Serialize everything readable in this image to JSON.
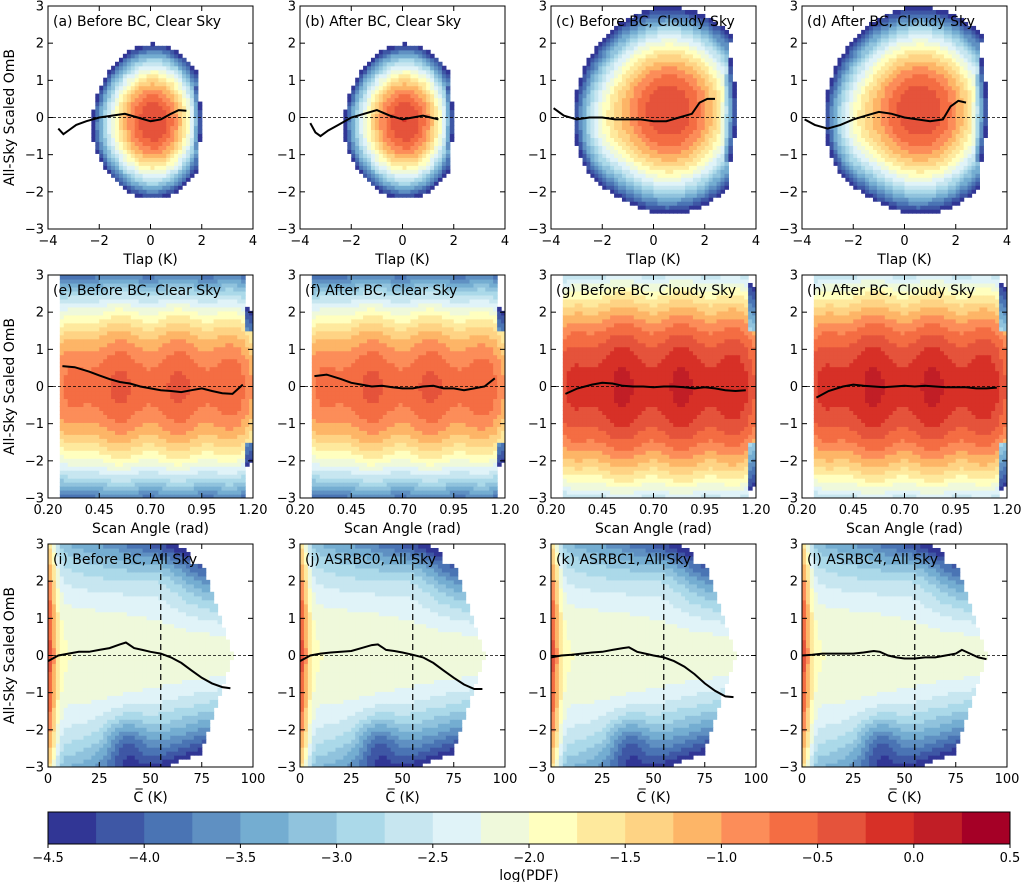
{
  "colorbar": {
    "label": "log(PDF)",
    "levels": [
      -4.5,
      -4.25,
      -4.0,
      -3.75,
      -3.5,
      -3.25,
      -3.0,
      -2.75,
      -2.5,
      -2.25,
      -2.0,
      -1.75,
      -1.5,
      -1.25,
      -1.0,
      -0.75,
      -0.5,
      -0.25,
      0.0,
      0.25,
      0.5
    ],
    "ticks": [
      -4.5,
      -4.0,
      -3.5,
      -3.0,
      -2.5,
      -2.0,
      -1.5,
      -1.0,
      -0.5,
      0.0,
      0.5
    ],
    "tick_labels": [
      "−4.5",
      "−4.0",
      "−3.5",
      "−3.0",
      "−2.5",
      "−2.0",
      "−1.5",
      "−1.0",
      "−0.5",
      "0.0",
      "0.5"
    ],
    "colors": [
      "#313695",
      "#3e57a5",
      "#4a74b4",
      "#5f90c2",
      "#74add1",
      "#90c3dd",
      "#abd9e9",
      "#c7e6f0",
      "#e0f3f8",
      "#eff9db",
      "#ffffbf",
      "#fee99d",
      "#fed384",
      "#fdb567",
      "#fc8d59",
      "#f46d43",
      "#e5533b",
      "#d73027",
      "#c11e26",
      "#a50026"
    ]
  },
  "ylabel": "All-Sky Scaled OmB",
  "chart_data": [
    {
      "type": "contour",
      "title": "(a) Before BC, Clear Sky",
      "xlabel": "Tlap (K)",
      "xlim": [
        -4,
        4
      ],
      "ylim": [
        -3,
        3
      ],
      "x_ticks": [
        -4,
        -2,
        0,
        2,
        4
      ],
      "x_tick_labels": [
        "−4",
        "−2",
        "0",
        "2",
        "4"
      ],
      "y_ticks": [
        -3,
        -2,
        -1,
        0,
        1,
        2,
        3
      ],
      "y_tick_labels": [
        "−3",
        "−2",
        "−1",
        "0",
        "1",
        "2",
        "3"
      ],
      "mean_line": {
        "x": [
          -3.6,
          -3.4,
          -3.2,
          -2.9,
          -2.5,
          -2.0,
          -1.5,
          -1.0,
          -0.5,
          0.0,
          0.4,
          0.8,
          1.1,
          1.4
        ],
        "y": [
          -0.3,
          -0.45,
          -0.35,
          -0.2,
          -0.1,
          0.0,
          0.05,
          0.1,
          0.0,
          -0.1,
          -0.05,
          0.1,
          0.2,
          0.18
        ]
      }
    },
    {
      "type": "contour",
      "title": "(b) After BC, Clear Sky",
      "xlabel": "Tlap (K)",
      "xlim": [
        -4,
        4
      ],
      "ylim": [
        -3,
        3
      ],
      "x_ticks": [
        -4,
        -2,
        0,
        2,
        4
      ],
      "x_tick_labels": [
        "−4",
        "−2",
        "0",
        "2",
        "4"
      ],
      "y_ticks": [
        -3,
        -2,
        -1,
        0,
        1,
        2,
        3
      ],
      "y_tick_labels": [
        "−3",
        "−2",
        "−1",
        "0",
        "1",
        "2",
        "3"
      ],
      "mean_line": {
        "x": [
          -3.6,
          -3.4,
          -3.2,
          -2.9,
          -2.5,
          -2.0,
          -1.5,
          -1.0,
          -0.5,
          0.0,
          0.4,
          0.8,
          1.1,
          1.4
        ],
        "y": [
          -0.15,
          -0.4,
          -0.5,
          -0.35,
          -0.2,
          0.0,
          0.1,
          0.2,
          0.05,
          -0.05,
          0.0,
          0.05,
          0.0,
          -0.05
        ]
      }
    },
    {
      "type": "contour",
      "title": "(c) Before BC, Cloudy Sky",
      "xlabel": "Tlap (K)",
      "xlim": [
        -4,
        4
      ],
      "ylim": [
        -3,
        3
      ],
      "x_ticks": [
        -4,
        -2,
        0,
        2,
        4
      ],
      "x_tick_labels": [
        "−4",
        "−2",
        "0",
        "2",
        "4"
      ],
      "y_ticks": [
        -3,
        -2,
        -1,
        0,
        1,
        2,
        3
      ],
      "y_tick_labels": [
        "−3",
        "−2",
        "−1",
        "0",
        "1",
        "2",
        "3"
      ],
      "mean_line": {
        "x": [
          -3.9,
          -3.5,
          -3.0,
          -2.5,
          -2.0,
          -1.5,
          -1.0,
          -0.5,
          0.0,
          0.5,
          1.0,
          1.5,
          1.8,
          2.1,
          2.4
        ],
        "y": [
          0.25,
          0.05,
          -0.05,
          0.0,
          0.0,
          -0.05,
          -0.05,
          -0.05,
          -0.1,
          -0.1,
          0.0,
          0.1,
          0.4,
          0.5,
          0.5
        ]
      }
    },
    {
      "type": "contour",
      "title": "(d) After BC, Cloudy Sky",
      "xlabel": "Tlap (K)",
      "xlim": [
        -4,
        4
      ],
      "ylim": [
        -3,
        3
      ],
      "x_ticks": [
        -4,
        -2,
        0,
        2,
        4
      ],
      "x_tick_labels": [
        "−4",
        "−2",
        "0",
        "2",
        "4"
      ],
      "y_ticks": [
        -3,
        -2,
        -1,
        0,
        1,
        2,
        3
      ],
      "y_tick_labels": [
        "−3",
        "−2",
        "−1",
        "0",
        "1",
        "2",
        "3"
      ],
      "mean_line": {
        "x": [
          -3.9,
          -3.5,
          -3.0,
          -2.5,
          -2.0,
          -1.5,
          -1.0,
          -0.5,
          0.0,
          0.5,
          1.0,
          1.5,
          1.8,
          2.1,
          2.4
        ],
        "y": [
          -0.05,
          -0.2,
          -0.3,
          -0.2,
          -0.05,
          0.05,
          0.15,
          0.1,
          0.0,
          -0.05,
          -0.1,
          -0.05,
          0.3,
          0.45,
          0.4
        ]
      }
    },
    {
      "type": "contour",
      "title": "(e) Before BC, Clear Sky",
      "xlabel": "Scan Angle (rad)",
      "xlim": [
        0.2,
        1.2
      ],
      "ylim": [
        -3,
        3
      ],
      "x_ticks": [
        0.2,
        0.45,
        0.7,
        0.95,
        1.2
      ],
      "x_tick_labels": [
        "0.20",
        "0.45",
        "0.70",
        "0.95",
        "1.20"
      ],
      "y_ticks": [
        -3,
        -2,
        -1,
        0,
        1,
        2,
        3
      ],
      "y_tick_labels": [
        "−3",
        "−2",
        "−1",
        "0",
        "1",
        "2",
        "3"
      ],
      "mean_line": {
        "x": [
          0.27,
          0.33,
          0.4,
          0.45,
          0.5,
          0.55,
          0.6,
          0.65,
          0.7,
          0.75,
          0.8,
          0.85,
          0.9,
          0.95,
          1.0,
          1.05,
          1.1,
          1.15
        ],
        "y": [
          0.55,
          0.52,
          0.4,
          0.3,
          0.2,
          0.12,
          0.08,
          0.0,
          -0.05,
          -0.1,
          -0.12,
          -0.15,
          -0.1,
          -0.05,
          -0.12,
          -0.18,
          -0.2,
          0.05
        ]
      }
    },
    {
      "type": "contour",
      "title": "(f) After BC, Clear Sky",
      "xlabel": "Scan Angle (rad)",
      "xlim": [
        0.2,
        1.2
      ],
      "ylim": [
        -3,
        3
      ],
      "x_ticks": [
        0.2,
        0.45,
        0.7,
        0.95,
        1.2
      ],
      "x_tick_labels": [
        "0.20",
        "0.45",
        "0.70",
        "0.95",
        "1.20"
      ],
      "y_ticks": [
        -3,
        -2,
        -1,
        0,
        1,
        2,
        3
      ],
      "y_tick_labels": [
        "−3",
        "−2",
        "−1",
        "0",
        "1",
        "2",
        "3"
      ],
      "mean_line": {
        "x": [
          0.27,
          0.33,
          0.4,
          0.45,
          0.5,
          0.55,
          0.6,
          0.65,
          0.7,
          0.75,
          0.8,
          0.85,
          0.9,
          0.95,
          1.0,
          1.05,
          1.1,
          1.15
        ],
        "y": [
          0.28,
          0.32,
          0.2,
          0.1,
          0.05,
          0.0,
          0.02,
          -0.02,
          -0.05,
          -0.05,
          0.0,
          0.02,
          -0.05,
          -0.05,
          -0.1,
          -0.05,
          0.0,
          0.22
        ]
      }
    },
    {
      "type": "contour",
      "title": "(g) Before BC, Cloudy Sky",
      "xlabel": "Scan Angle (rad)",
      "xlim": [
        0.2,
        1.2
      ],
      "ylim": [
        -3,
        3
      ],
      "x_ticks": [
        0.2,
        0.45,
        0.7,
        0.95,
        1.2
      ],
      "x_tick_labels": [
        "0.20",
        "0.45",
        "0.70",
        "0.95",
        "1.20"
      ],
      "y_ticks": [
        -3,
        -2,
        -1,
        0,
        1,
        2,
        3
      ],
      "y_tick_labels": [
        "−3",
        "−2",
        "−1",
        "0",
        "1",
        "2",
        "3"
      ],
      "mean_line": {
        "x": [
          0.27,
          0.33,
          0.4,
          0.45,
          0.5,
          0.55,
          0.6,
          0.65,
          0.7,
          0.75,
          0.8,
          0.85,
          0.9,
          0.95,
          1.0,
          1.05,
          1.1,
          1.15
        ],
        "y": [
          -0.2,
          -0.05,
          0.05,
          0.1,
          0.08,
          0.02,
          0.0,
          0.0,
          -0.02,
          0.0,
          0.0,
          -0.02,
          -0.05,
          -0.02,
          -0.05,
          -0.1,
          -0.12,
          -0.1
        ]
      }
    },
    {
      "type": "contour",
      "title": "(h) After BC, Cloudy Sky",
      "xlabel": "Scan Angle (rad)",
      "xlim": [
        0.2,
        1.2
      ],
      "ylim": [
        -3,
        3
      ],
      "x_ticks": [
        0.2,
        0.45,
        0.7,
        0.95,
        1.2
      ],
      "x_tick_labels": [
        "0.20",
        "0.45",
        "0.70",
        "0.95",
        "1.20"
      ],
      "y_ticks": [
        -3,
        -2,
        -1,
        0,
        1,
        2,
        3
      ],
      "y_tick_labels": [
        "−3",
        "−2",
        "−1",
        "0",
        "1",
        "2",
        "3"
      ],
      "mean_line": {
        "x": [
          0.27,
          0.33,
          0.4,
          0.45,
          0.5,
          0.55,
          0.6,
          0.65,
          0.7,
          0.75,
          0.8,
          0.85,
          0.9,
          0.95,
          1.0,
          1.05,
          1.1,
          1.15
        ],
        "y": [
          -0.3,
          -0.12,
          0.0,
          0.05,
          0.02,
          0.0,
          -0.02,
          0.0,
          0.02,
          0.0,
          0.02,
          0.0,
          -0.02,
          -0.02,
          -0.02,
          -0.05,
          -0.05,
          -0.03
        ]
      }
    },
    {
      "type": "contour",
      "title": "(i) Before BC, All Sky",
      "xlabel": "C̅ (K)",
      "xlim": [
        0,
        100
      ],
      "ylim": [
        -3,
        3
      ],
      "x_ticks": [
        0,
        25,
        50,
        75,
        100
      ],
      "x_tick_labels": [
        "0",
        "25",
        "50",
        "75",
        "100"
      ],
      "y_ticks": [
        -3,
        -2,
        -1,
        0,
        1,
        2,
        3
      ],
      "y_tick_labels": [
        "−3",
        "−2",
        "−1",
        "0",
        "1",
        "2",
        "3"
      ],
      "vline": 55,
      "mean_line": {
        "x": [
          0,
          5,
          10,
          15,
          20,
          25,
          30,
          35,
          38,
          42,
          46,
          50,
          55,
          60,
          65,
          70,
          75,
          80,
          85,
          89
        ],
        "y": [
          -0.15,
          0.0,
          0.05,
          0.1,
          0.1,
          0.15,
          0.2,
          0.3,
          0.35,
          0.2,
          0.15,
          0.1,
          0.05,
          -0.05,
          -0.2,
          -0.4,
          -0.6,
          -0.75,
          -0.85,
          -0.88
        ]
      }
    },
    {
      "type": "contour",
      "title": "(j) ASRBC0, All Sky",
      "xlabel": "C̅ (K)",
      "xlim": [
        0,
        100
      ],
      "ylim": [
        -3,
        3
      ],
      "x_ticks": [
        0,
        25,
        50,
        75,
        100
      ],
      "x_tick_labels": [
        "0",
        "25",
        "50",
        "75",
        "100"
      ],
      "y_ticks": [
        -3,
        -2,
        -1,
        0,
        1,
        2,
        3
      ],
      "y_tick_labels": [
        "−3",
        "−2",
        "−1",
        "0",
        "1",
        "2",
        "3"
      ],
      "vline": 55,
      "mean_line": {
        "x": [
          0,
          5,
          10,
          15,
          20,
          25,
          30,
          35,
          38,
          42,
          46,
          50,
          55,
          60,
          65,
          70,
          75,
          80,
          85,
          89
        ],
        "y": [
          -0.15,
          0.0,
          0.05,
          0.08,
          0.1,
          0.12,
          0.2,
          0.28,
          0.3,
          0.15,
          0.12,
          0.08,
          0.02,
          -0.05,
          -0.2,
          -0.4,
          -0.6,
          -0.78,
          -0.9,
          -0.9
        ]
      }
    },
    {
      "type": "contour",
      "title": "(k) ASRBC1, All Sky",
      "xlabel": "C̅ (K)",
      "xlim": [
        0,
        100
      ],
      "ylim": [
        -3,
        3
      ],
      "x_ticks": [
        0,
        25,
        50,
        75,
        100
      ],
      "x_tick_labels": [
        "0",
        "25",
        "50",
        "75",
        "100"
      ],
      "y_ticks": [
        -3,
        -2,
        -1,
        0,
        1,
        2,
        3
      ],
      "y_tick_labels": [
        "−3",
        "−2",
        "−1",
        "0",
        "1",
        "2",
        "3"
      ],
      "vline": 55,
      "mean_line": {
        "x": [
          0,
          5,
          10,
          15,
          20,
          25,
          30,
          35,
          38,
          42,
          46,
          50,
          55,
          60,
          65,
          70,
          75,
          80,
          85,
          89
        ],
        "y": [
          -0.05,
          0.0,
          0.02,
          0.05,
          0.08,
          0.1,
          0.15,
          0.2,
          0.22,
          0.1,
          0.05,
          0.0,
          -0.05,
          -0.15,
          -0.3,
          -0.5,
          -0.75,
          -0.95,
          -1.1,
          -1.12
        ]
      }
    },
    {
      "type": "contour",
      "title": "(l) ASRBC4, All Sky",
      "xlabel": "C̅ (K)",
      "xlim": [
        0,
        100
      ],
      "ylim": [
        -3,
        3
      ],
      "x_ticks": [
        0,
        25,
        50,
        75,
        100
      ],
      "x_tick_labels": [
        "0",
        "25",
        "50",
        "75",
        "100"
      ],
      "y_ticks": [
        -3,
        -2,
        -1,
        0,
        1,
        2,
        3
      ],
      "y_tick_labels": [
        "−3",
        "−2",
        "−1",
        "0",
        "1",
        "2",
        "3"
      ],
      "vline": 55,
      "mean_line": {
        "x": [
          0,
          5,
          10,
          15,
          20,
          25,
          30,
          35,
          38,
          42,
          46,
          50,
          55,
          60,
          65,
          70,
          75,
          78,
          82,
          86,
          90
        ],
        "y": [
          0.0,
          0.02,
          0.05,
          0.05,
          0.05,
          0.05,
          0.08,
          0.12,
          0.1,
          0.0,
          -0.05,
          -0.08,
          -0.08,
          -0.05,
          -0.05,
          0.0,
          0.05,
          0.15,
          0.05,
          -0.05,
          -0.1
        ]
      }
    }
  ]
}
